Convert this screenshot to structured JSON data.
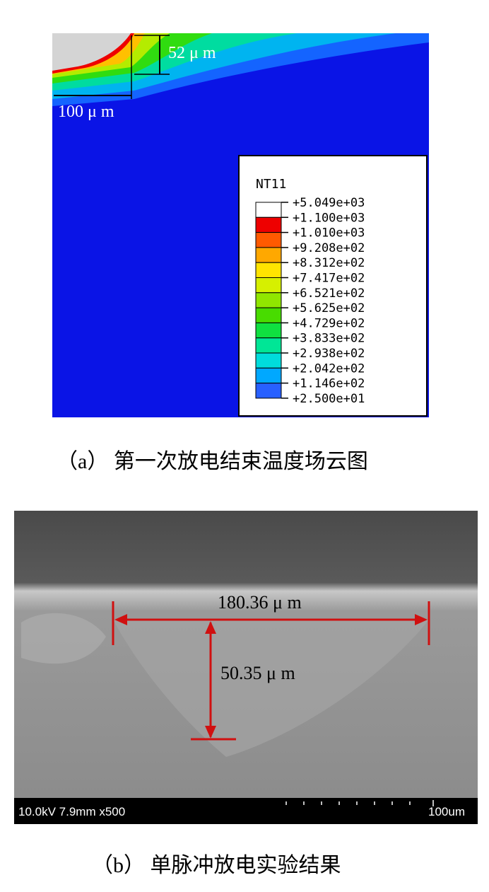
{
  "panel_a": {
    "dimension_depth": "52 μ m",
    "dimension_width": "100 μ m",
    "legend_title": "NT11",
    "legend_labels": [
      "+5.049e+03",
      "+1.100e+03",
      "+1.010e+03",
      "+9.208e+02",
      "+8.312e+02",
      "+7.417e+02",
      "+6.521e+02",
      "+5.625e+02",
      "+4.729e+02",
      "+3.833e+02",
      "+2.938e+02",
      "+2.042e+02",
      "+1.146e+02",
      "+2.500e+01"
    ],
    "legend_colors": [
      "#ffffff",
      "#ee0000",
      "#ff5a00",
      "#ffa800",
      "#ffe400",
      "#d6f000",
      "#90e600",
      "#48dc00",
      "#10e040",
      "#00e696",
      "#00dcdc",
      "#00a8ff",
      "#2860ff",
      "#0010ff"
    ],
    "caption": "（a） 第一次放电结束温度场云图"
  },
  "panel_b": {
    "dimension_width": "180.36 μ m",
    "dimension_depth": "50.35 μ m",
    "sem_info": "10.0kV 7.9mm x500",
    "scale_label": "100um",
    "caption": "（b） 单脉冲放电实验结果"
  }
}
